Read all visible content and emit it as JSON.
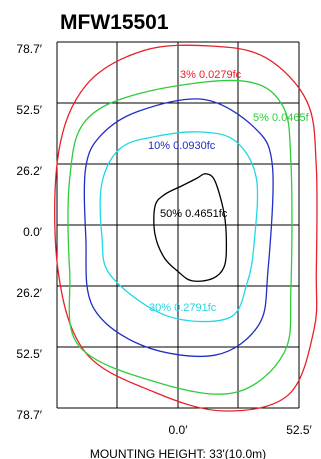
{
  "chart_data": {
    "type": "contour",
    "title": "MFW15501",
    "footer": "MOUNTING HEIGHT: 33'(10.0m)",
    "y_ticks": [
      "78.7′",
      "52.5′",
      "26.2′",
      "0.0′",
      "26.2′",
      "52.5′",
      "78.7′"
    ],
    "x_ticks": [
      "0.0′",
      "52.5′"
    ],
    "grid": true,
    "contours": [
      {
        "label": "3% 0.0279fc",
        "color": "#e8202a",
        "points": [
          [
            14,
            77
          ],
          [
            38,
            72
          ],
          [
            56,
            53
          ],
          [
            60,
            25
          ],
          [
            60,
            -20
          ],
          [
            59,
            -45
          ],
          [
            48,
            -73
          ],
          [
            20,
            -80
          ],
          [
            -10,
            -72
          ],
          [
            -40,
            -55
          ],
          [
            -52,
            -20
          ],
          [
            -52,
            30
          ],
          [
            -40,
            60
          ],
          [
            -15,
            75
          ]
        ]
      },
      {
        "label": "5% 0.0465f",
        "color": "#2ecc3a",
        "points": [
          [
            27,
            62
          ],
          [
            45,
            52
          ],
          [
            49,
            27
          ],
          [
            49,
            -27
          ],
          [
            46,
            -55
          ],
          [
            25,
            -72
          ],
          [
            -8,
            -68
          ],
          [
            -43,
            -52
          ],
          [
            -47,
            -20
          ],
          [
            -47,
            20
          ],
          [
            -40,
            45
          ],
          [
            -15,
            57
          ]
        ]
      },
      {
        "label": "10% 0.0930fc",
        "color": "#1f2ec4",
        "points": [
          [
            11,
            54
          ],
          [
            33,
            42
          ],
          [
            41,
            25
          ],
          [
            39,
            -20
          ],
          [
            35,
            -43
          ],
          [
            16,
            -56
          ],
          [
            -15,
            -52
          ],
          [
            -37,
            -35
          ],
          [
            -40,
            -5
          ],
          [
            -40,
            25
          ],
          [
            -33,
            39
          ],
          [
            -17,
            49
          ]
        ]
      },
      {
        "label": "30% 0.2791fc",
        "color": "#20d8e6",
        "points": [
          [
            10,
            40
          ],
          [
            25,
            36
          ],
          [
            34,
            20
          ],
          [
            33,
            -8
          ],
          [
            30,
            -25
          ],
          [
            22,
            -40
          ],
          [
            -5,
            -39
          ],
          [
            -29,
            -22
          ],
          [
            -33,
            -5
          ],
          [
            -33,
            18
          ],
          [
            -25,
            33
          ],
          [
            -10,
            38
          ]
        ]
      },
      {
        "label": "50% 0.4651fc",
        "color": "#000000",
        "points": [
          [
            12,
            22
          ],
          [
            16,
            19
          ],
          [
            20,
            5
          ],
          [
            21,
            -8
          ],
          [
            20,
            -18
          ],
          [
            15,
            -23
          ],
          [
            6,
            -24
          ],
          [
            0,
            -20
          ],
          [
            -6,
            -14
          ],
          [
            -10,
            -4
          ],
          [
            -10,
            8
          ],
          [
            -6,
            13
          ],
          [
            2,
            17
          ],
          [
            8,
            20
          ]
        ]
      }
    ]
  }
}
